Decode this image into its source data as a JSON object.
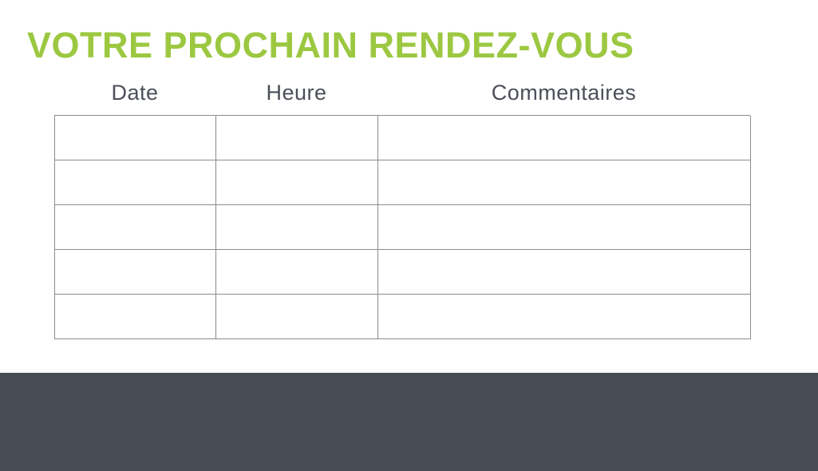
{
  "page": {
    "title": "VOTRE PROCHAIN RENDEZ-VOUS"
  },
  "table": {
    "headers": [
      "Date",
      "Heure",
      "Commentaires"
    ],
    "rows": [
      [
        "",
        "",
        ""
      ],
      [
        "",
        "",
        ""
      ],
      [
        "",
        "",
        ""
      ],
      [
        "",
        "",
        ""
      ],
      [
        "",
        "",
        ""
      ]
    ]
  },
  "colors": {
    "title_green": "#9CC841",
    "header_text": "#4B4F59",
    "table_border": "#888C92",
    "footer_background": "#474B54"
  }
}
